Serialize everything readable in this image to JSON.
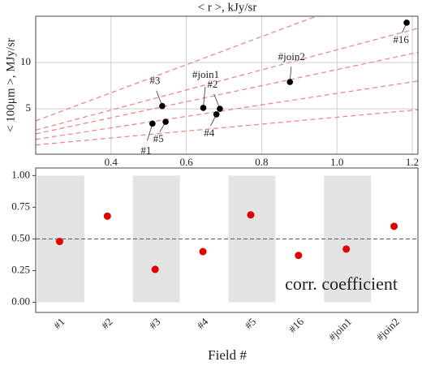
{
  "chart_data": [
    {
      "type": "scatter",
      "title": "< r >, kJy/sr",
      "y_label": "< 100μm >, MJy/sr",
      "x": [
        0.51,
        0.545,
        0.536,
        0.645,
        0.689,
        0.68,
        0.875,
        1.185
      ],
      "values": [
        3.4,
        3.6,
        5.3,
        5.1,
        5.0,
        4.4,
        7.9,
        14.3
      ],
      "point_labels": [
        "#1",
        "#5",
        "#3",
        "#join1",
        "#2",
        "#4",
        "#join2",
        "#16"
      ],
      "color": "#000000",
      "lines": [
        {
          "x": [
            0.2,
            0.945
          ],
          "values": [
            3.7,
            15
          ]
        },
        {
          "x": [
            0.2,
            1.215
          ],
          "values": [
            2.7,
            13.7
          ]
        },
        {
          "x": [
            0.2,
            1.215
          ],
          "values": [
            2.3,
            11.1
          ]
        },
        {
          "x": [
            0.2,
            1.215
          ],
          "values": [
            1.7,
            8.0
          ]
        },
        {
          "x": [
            0.2,
            1.215
          ],
          "values": [
            1.1,
            4.9
          ]
        }
      ],
      "line_color": "#f08080",
      "xlim": [
        0.2,
        1.215
      ],
      "xticks": [
        0.4,
        0.6,
        0.8,
        {
          "value": 1.0,
          "label": "1.0"
        },
        1.2
      ],
      "ylim": [
        0.1,
        15
      ],
      "yticks": [
        5,
        10
      ],
      "grid": true
    },
    {
      "type": "scatter",
      "x_label": "Field #",
      "annotation": "corr. coefficient",
      "categories": [
        "#1",
        "#2",
        "#3",
        "#4",
        "#5",
        "#16",
        "#join1",
        "#join2"
      ],
      "values": [
        0.48,
        0.68,
        0.26,
        0.4,
        0.69,
        0.37,
        0.42,
        0.6
      ],
      "color": "#e00000",
      "hline": {
        "value": 0.5,
        "color": "#666666"
      },
      "band_color": "#e3e3e3",
      "band_range": [
        0,
        1
      ],
      "ylim": [
        -0.08,
        1.06
      ],
      "yticks": [
        {
          "value": 0,
          "label": "0.00"
        },
        0.25,
        {
          "value": 0.5,
          "label": "0.50"
        },
        0.75,
        {
          "value": 1,
          "label": "1.00"
        }
      ]
    }
  ]
}
